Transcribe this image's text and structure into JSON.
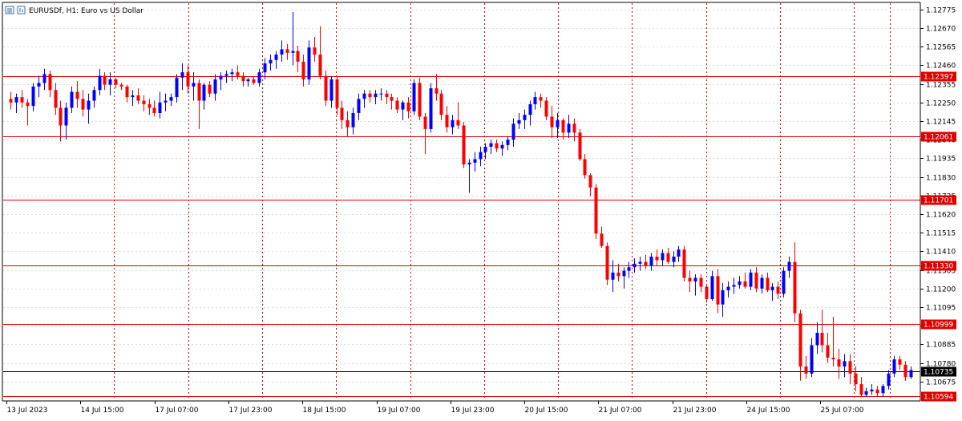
{
  "header": {
    "title": "EURUSDf, H1:  Euro vs US Dollar"
  },
  "colors": {
    "bull": "#0000ff",
    "bear": "#ff0000",
    "level": "#e00000",
    "current": "#000000",
    "grid": "#dddddd",
    "vgrid": "#e00000"
  },
  "chart_data": {
    "type": "candlestick",
    "symbol": "EURUSDf",
    "timeframe": "H1",
    "description": "Euro vs US Dollar",
    "ylim": [
      1.1057,
      1.1281
    ],
    "y_ticks": [
      "1.12775",
      "1.12670",
      "1.12565",
      "1.12460",
      "1.12355",
      "1.12250",
      "1.12145",
      "1.12040",
      "1.11935",
      "1.11830",
      "1.11725",
      "1.11620",
      "1.11515",
      "1.11410",
      "1.11305",
      "1.11200",
      "1.11095",
      "1.10990",
      "1.10885",
      "1.10780",
      "1.10675"
    ],
    "x_ticks": [
      "13 Jul 2023",
      "14 Jul 15:00",
      "17 Jul 07:00",
      "17 Jul 23:00",
      "18 Jul 15:00",
      "19 Jul 07:00",
      "19 Jul 23:00",
      "20 Jul 15:00",
      "21 Jul 07:00",
      "21 Jul 23:00",
      "24 Jul 15:00",
      "25 Jul 07:00"
    ],
    "levels": [
      {
        "value": 1.12397,
        "label": "1.12397"
      },
      {
        "value": 1.12061,
        "label": "1.12061"
      },
      {
        "value": 1.11701,
        "label": "1.11701"
      },
      {
        "value": 1.1133,
        "label": "1.11330"
      },
      {
        "value": 1.10999,
        "label": "1.10999"
      },
      {
        "value": 1.10594,
        "label": "1.10594"
      }
    ],
    "current_price": {
      "value": 1.10735,
      "label": "1.10735"
    },
    "candles": [
      {
        "o": 1.1227,
        "h": 1.1231,
        "l": 1.1221,
        "c": 1.1225
      },
      {
        "o": 1.1225,
        "h": 1.123,
        "l": 1.1219,
        "c": 1.1228
      },
      {
        "o": 1.1228,
        "h": 1.1232,
        "l": 1.1222,
        "c": 1.1225
      },
      {
        "o": 1.1225,
        "h": 1.1227,
        "l": 1.1212,
        "c": 1.1223
      },
      {
        "o": 1.1223,
        "h": 1.1236,
        "l": 1.122,
        "c": 1.1234
      },
      {
        "o": 1.1234,
        "h": 1.124,
        "l": 1.1228,
        "c": 1.1236
      },
      {
        "o": 1.1236,
        "h": 1.1244,
        "l": 1.1232,
        "c": 1.1241
      },
      {
        "o": 1.1241,
        "h": 1.1243,
        "l": 1.1228,
        "c": 1.1232
      },
      {
        "o": 1.1232,
        "h": 1.1236,
        "l": 1.1218,
        "c": 1.1222
      },
      {
        "o": 1.1222,
        "h": 1.1226,
        "l": 1.1203,
        "c": 1.1212
      },
      {
        "o": 1.1212,
        "h": 1.1225,
        "l": 1.1204,
        "c": 1.1222
      },
      {
        "o": 1.1222,
        "h": 1.1234,
        "l": 1.1219,
        "c": 1.1231
      },
      {
        "o": 1.1231,
        "h": 1.1237,
        "l": 1.1222,
        "c": 1.1227
      },
      {
        "o": 1.1227,
        "h": 1.1232,
        "l": 1.1217,
        "c": 1.1221
      },
      {
        "o": 1.1221,
        "h": 1.123,
        "l": 1.1213,
        "c": 1.1226
      },
      {
        "o": 1.1226,
        "h": 1.1234,
        "l": 1.1222,
        "c": 1.1232
      },
      {
        "o": 1.1232,
        "h": 1.1244,
        "l": 1.1229,
        "c": 1.124
      },
      {
        "o": 1.124,
        "h": 1.1242,
        "l": 1.1232,
        "c": 1.1235
      },
      {
        "o": 1.1235,
        "h": 1.1242,
        "l": 1.1229,
        "c": 1.1238
      },
      {
        "o": 1.1238,
        "h": 1.1239,
        "l": 1.1233,
        "c": 1.1235
      },
      {
        "o": 1.1235,
        "h": 1.1236,
        "l": 1.1232,
        "c": 1.1234
      },
      {
        "o": 1.1234,
        "h": 1.1235,
        "l": 1.1225,
        "c": 1.1228
      },
      {
        "o": 1.1228,
        "h": 1.1232,
        "l": 1.1223,
        "c": 1.1229
      },
      {
        "o": 1.1229,
        "h": 1.1233,
        "l": 1.1224,
        "c": 1.1226
      },
      {
        "o": 1.1226,
        "h": 1.1229,
        "l": 1.122,
        "c": 1.1224
      },
      {
        "o": 1.1224,
        "h": 1.1227,
        "l": 1.1218,
        "c": 1.1222
      },
      {
        "o": 1.1222,
        "h": 1.1226,
        "l": 1.1217,
        "c": 1.1219
      },
      {
        "o": 1.1219,
        "h": 1.1231,
        "l": 1.1216,
        "c": 1.1225
      },
      {
        "o": 1.1225,
        "h": 1.123,
        "l": 1.122,
        "c": 1.1226
      },
      {
        "o": 1.1226,
        "h": 1.123,
        "l": 1.1223,
        "c": 1.1228
      },
      {
        "o": 1.1228,
        "h": 1.1241,
        "l": 1.1225,
        "c": 1.1239
      },
      {
        "o": 1.1239,
        "h": 1.1247,
        "l": 1.1232,
        "c": 1.1242
      },
      {
        "o": 1.1242,
        "h": 1.1246,
        "l": 1.123,
        "c": 1.1234
      },
      {
        "o": 1.1234,
        "h": 1.1242,
        "l": 1.1226,
        "c": 1.1236
      },
      {
        "o": 1.1236,
        "h": 1.1238,
        "l": 1.121,
        "c": 1.1226
      },
      {
        "o": 1.1226,
        "h": 1.1236,
        "l": 1.1221,
        "c": 1.1235
      },
      {
        "o": 1.1235,
        "h": 1.1237,
        "l": 1.1228,
        "c": 1.123
      },
      {
        "o": 1.123,
        "h": 1.1241,
        "l": 1.1226,
        "c": 1.1238
      },
      {
        "o": 1.1238,
        "h": 1.1242,
        "l": 1.1232,
        "c": 1.124
      },
      {
        "o": 1.124,
        "h": 1.1243,
        "l": 1.1236,
        "c": 1.1241
      },
      {
        "o": 1.1241,
        "h": 1.1244,
        "l": 1.1237,
        "c": 1.1242
      },
      {
        "o": 1.1242,
        "h": 1.1246,
        "l": 1.1238,
        "c": 1.124
      },
      {
        "o": 1.124,
        "h": 1.1242,
        "l": 1.1234,
        "c": 1.1237
      },
      {
        "o": 1.1237,
        "h": 1.1239,
        "l": 1.1234,
        "c": 1.1238
      },
      {
        "o": 1.1238,
        "h": 1.124,
        "l": 1.1235,
        "c": 1.1236
      },
      {
        "o": 1.1236,
        "h": 1.1244,
        "l": 1.1234,
        "c": 1.1242
      },
      {
        "o": 1.1242,
        "h": 1.125,
        "l": 1.1238,
        "c": 1.1247
      },
      {
        "o": 1.1247,
        "h": 1.1252,
        "l": 1.1243,
        "c": 1.1249
      },
      {
        "o": 1.1249,
        "h": 1.1254,
        "l": 1.1244,
        "c": 1.1252
      },
      {
        "o": 1.1252,
        "h": 1.126,
        "l": 1.1248,
        "c": 1.1255
      },
      {
        "o": 1.1255,
        "h": 1.1258,
        "l": 1.1249,
        "c": 1.1253
      },
      {
        "o": 1.1253,
        "h": 1.1276,
        "l": 1.1246,
        "c": 1.1254
      },
      {
        "o": 1.1254,
        "h": 1.1257,
        "l": 1.1242,
        "c": 1.1248
      },
      {
        "o": 1.1248,
        "h": 1.1252,
        "l": 1.1234,
        "c": 1.1238
      },
      {
        "o": 1.1238,
        "h": 1.126,
        "l": 1.1235,
        "c": 1.1256
      },
      {
        "o": 1.1256,
        "h": 1.1262,
        "l": 1.1248,
        "c": 1.1252
      },
      {
        "o": 1.1252,
        "h": 1.1268,
        "l": 1.1238,
        "c": 1.124
      },
      {
        "o": 1.124,
        "h": 1.1243,
        "l": 1.1223,
        "c": 1.1226
      },
      {
        "o": 1.1226,
        "h": 1.124,
        "l": 1.1222,
        "c": 1.1238
      },
      {
        "o": 1.1238,
        "h": 1.124,
        "l": 1.1218,
        "c": 1.1222
      },
      {
        "o": 1.1222,
        "h": 1.1226,
        "l": 1.121,
        "c": 1.1215
      },
      {
        "o": 1.1215,
        "h": 1.122,
        "l": 1.1206,
        "c": 1.1211
      },
      {
        "o": 1.1211,
        "h": 1.1222,
        "l": 1.1207,
        "c": 1.1219
      },
      {
        "o": 1.1219,
        "h": 1.123,
        "l": 1.1215,
        "c": 1.1227
      },
      {
        "o": 1.1227,
        "h": 1.1232,
        "l": 1.1222,
        "c": 1.123
      },
      {
        "o": 1.123,
        "h": 1.1232,
        "l": 1.1225,
        "c": 1.1228
      },
      {
        "o": 1.1228,
        "h": 1.1232,
        "l": 1.1224,
        "c": 1.123
      },
      {
        "o": 1.123,
        "h": 1.1233,
        "l": 1.1226,
        "c": 1.123
      },
      {
        "o": 1.123,
        "h": 1.1232,
        "l": 1.1224,
        "c": 1.1228
      },
      {
        "o": 1.1228,
        "h": 1.123,
        "l": 1.1221,
        "c": 1.1226
      },
      {
        "o": 1.1226,
        "h": 1.1228,
        "l": 1.1219,
        "c": 1.1221
      },
      {
        "o": 1.1221,
        "h": 1.1226,
        "l": 1.1215,
        "c": 1.1225
      },
      {
        "o": 1.1225,
        "h": 1.1228,
        "l": 1.1216,
        "c": 1.122
      },
      {
        "o": 1.122,
        "h": 1.1238,
        "l": 1.1218,
        "c": 1.1236
      },
      {
        "o": 1.1236,
        "h": 1.1239,
        "l": 1.1215,
        "c": 1.1217
      },
      {
        "o": 1.1217,
        "h": 1.1219,
        "l": 1.1196,
        "c": 1.121
      },
      {
        "o": 1.121,
        "h": 1.1236,
        "l": 1.1208,
        "c": 1.1233
      },
      {
        "o": 1.1233,
        "h": 1.1241,
        "l": 1.1226,
        "c": 1.123
      },
      {
        "o": 1.123,
        "h": 1.1232,
        "l": 1.1215,
        "c": 1.1218
      },
      {
        "o": 1.1218,
        "h": 1.1223,
        "l": 1.1208,
        "c": 1.1211
      },
      {
        "o": 1.1211,
        "h": 1.1218,
        "l": 1.1207,
        "c": 1.1215
      },
      {
        "o": 1.1215,
        "h": 1.1225,
        "l": 1.121,
        "c": 1.1212
      },
      {
        "o": 1.1212,
        "h": 1.1214,
        "l": 1.1188,
        "c": 1.119
      },
      {
        "o": 1.119,
        "h": 1.1193,
        "l": 1.1174,
        "c": 1.1191
      },
      {
        "o": 1.1191,
        "h": 1.1197,
        "l": 1.1186,
        "c": 1.1193
      },
      {
        "o": 1.1193,
        "h": 1.12,
        "l": 1.1189,
        "c": 1.1197
      },
      {
        "o": 1.1197,
        "h": 1.1202,
        "l": 1.1193,
        "c": 1.12
      },
      {
        "o": 1.12,
        "h": 1.1204,
        "l": 1.1196,
        "c": 1.1202
      },
      {
        "o": 1.1202,
        "h": 1.1204,
        "l": 1.1197,
        "c": 1.1199
      },
      {
        "o": 1.1199,
        "h": 1.1203,
        "l": 1.1195,
        "c": 1.1201
      },
      {
        "o": 1.1201,
        "h": 1.1206,
        "l": 1.1198,
        "c": 1.1204
      },
      {
        "o": 1.1204,
        "h": 1.1216,
        "l": 1.12,
        "c": 1.1213
      },
      {
        "o": 1.1213,
        "h": 1.1219,
        "l": 1.121,
        "c": 1.1215
      },
      {
        "o": 1.1215,
        "h": 1.1221,
        "l": 1.121,
        "c": 1.1218
      },
      {
        "o": 1.1218,
        "h": 1.1226,
        "l": 1.1212,
        "c": 1.1224
      },
      {
        "o": 1.1224,
        "h": 1.1231,
        "l": 1.1221,
        "c": 1.1228
      },
      {
        "o": 1.1228,
        "h": 1.123,
        "l": 1.1222,
        "c": 1.1226
      },
      {
        "o": 1.1226,
        "h": 1.1228,
        "l": 1.1215,
        "c": 1.1217
      },
      {
        "o": 1.1217,
        "h": 1.1223,
        "l": 1.1205,
        "c": 1.1211
      },
      {
        "o": 1.1211,
        "h": 1.1219,
        "l": 1.1205,
        "c": 1.1215
      },
      {
        "o": 1.1215,
        "h": 1.1216,
        "l": 1.1204,
        "c": 1.1208
      },
      {
        "o": 1.1208,
        "h": 1.1218,
        "l": 1.1205,
        "c": 1.1213
      },
      {
        "o": 1.1213,
        "h": 1.1216,
        "l": 1.1203,
        "c": 1.1208
      },
      {
        "o": 1.1208,
        "h": 1.121,
        "l": 1.1192,
        "c": 1.1193
      },
      {
        "o": 1.1193,
        "h": 1.1196,
        "l": 1.1182,
        "c": 1.1184
      },
      {
        "o": 1.1184,
        "h": 1.1185,
        "l": 1.1172,
        "c": 1.1177
      },
      {
        "o": 1.1177,
        "h": 1.1179,
        "l": 1.1148,
        "c": 1.1151
      },
      {
        "o": 1.1151,
        "h": 1.1155,
        "l": 1.1143,
        "c": 1.1144
      },
      {
        "o": 1.1144,
        "h": 1.1146,
        "l": 1.1122,
        "c": 1.1125
      },
      {
        "o": 1.1125,
        "h": 1.1136,
        "l": 1.1118,
        "c": 1.1129
      },
      {
        "o": 1.1129,
        "h": 1.1134,
        "l": 1.1124,
        "c": 1.1127
      },
      {
        "o": 1.1127,
        "h": 1.1132,
        "l": 1.112,
        "c": 1.113
      },
      {
        "o": 1.113,
        "h": 1.1135,
        "l": 1.1126,
        "c": 1.1132
      },
      {
        "o": 1.1132,
        "h": 1.1137,
        "l": 1.1129,
        "c": 1.1134
      },
      {
        "o": 1.1134,
        "h": 1.1138,
        "l": 1.113,
        "c": 1.1135
      },
      {
        "o": 1.1135,
        "h": 1.1139,
        "l": 1.1131,
        "c": 1.1133
      },
      {
        "o": 1.1133,
        "h": 1.114,
        "l": 1.113,
        "c": 1.1138
      },
      {
        "o": 1.1138,
        "h": 1.1142,
        "l": 1.1133,
        "c": 1.1136
      },
      {
        "o": 1.1136,
        "h": 1.1142,
        "l": 1.1133,
        "c": 1.114
      },
      {
        "o": 1.114,
        "h": 1.1143,
        "l": 1.1134,
        "c": 1.1135
      },
      {
        "o": 1.1135,
        "h": 1.1141,
        "l": 1.1132,
        "c": 1.1138
      },
      {
        "o": 1.1138,
        "h": 1.1144,
        "l": 1.1135,
        "c": 1.1142
      },
      {
        "o": 1.1142,
        "h": 1.1144,
        "l": 1.1124,
        "c": 1.1126
      },
      {
        "o": 1.1126,
        "h": 1.113,
        "l": 1.1118,
        "c": 1.1124
      },
      {
        "o": 1.1124,
        "h": 1.1128,
        "l": 1.1116,
        "c": 1.1126
      },
      {
        "o": 1.1126,
        "h": 1.1128,
        "l": 1.1118,
        "c": 1.1121
      },
      {
        "o": 1.1121,
        "h": 1.1122,
        "l": 1.1112,
        "c": 1.1114
      },
      {
        "o": 1.1114,
        "h": 1.113,
        "l": 1.1113,
        "c": 1.1127
      },
      {
        "o": 1.1127,
        "h": 1.1131,
        "l": 1.1106,
        "c": 1.1111
      },
      {
        "o": 1.1111,
        "h": 1.1123,
        "l": 1.1104,
        "c": 1.1119
      },
      {
        "o": 1.1119,
        "h": 1.1124,
        "l": 1.1115,
        "c": 1.1121
      },
      {
        "o": 1.1121,
        "h": 1.1126,
        "l": 1.1117,
        "c": 1.1122
      },
      {
        "o": 1.1122,
        "h": 1.1127,
        "l": 1.112,
        "c": 1.1124
      },
      {
        "o": 1.1124,
        "h": 1.1129,
        "l": 1.112,
        "c": 1.1121
      },
      {
        "o": 1.1121,
        "h": 1.1131,
        "l": 1.1119,
        "c": 1.1129
      },
      {
        "o": 1.1129,
        "h": 1.1132,
        "l": 1.1118,
        "c": 1.112
      },
      {
        "o": 1.112,
        "h": 1.1128,
        "l": 1.1117,
        "c": 1.1126
      },
      {
        "o": 1.1126,
        "h": 1.1129,
        "l": 1.1118,
        "c": 1.1119
      },
      {
        "o": 1.1119,
        "h": 1.1123,
        "l": 1.1113,
        "c": 1.1121
      },
      {
        "o": 1.1121,
        "h": 1.1124,
        "l": 1.1114,
        "c": 1.1117
      },
      {
        "o": 1.1117,
        "h": 1.1132,
        "l": 1.1115,
        "c": 1.113
      },
      {
        "o": 1.113,
        "h": 1.1138,
        "l": 1.1126,
        "c": 1.1135
      },
      {
        "o": 1.1135,
        "h": 1.1146,
        "l": 1.1101,
        "c": 1.1106
      },
      {
        "o": 1.1106,
        "h": 1.1108,
        "l": 1.1068,
        "c": 1.1076
      },
      {
        "o": 1.1076,
        "h": 1.1082,
        "l": 1.1069,
        "c": 1.1072
      },
      {
        "o": 1.1072,
        "h": 1.1092,
        "l": 1.107,
        "c": 1.1088
      },
      {
        "o": 1.1088,
        "h": 1.1101,
        "l": 1.1083,
        "c": 1.1095
      },
      {
        "o": 1.1095,
        "h": 1.1108,
        "l": 1.1084,
        "c": 1.1088
      },
      {
        "o": 1.1088,
        "h": 1.1095,
        "l": 1.1078,
        "c": 1.1081
      },
      {
        "o": 1.1081,
        "h": 1.1104,
        "l": 1.1076,
        "c": 1.108
      },
      {
        "o": 1.108,
        "h": 1.1086,
        "l": 1.1069,
        "c": 1.1076
      },
      {
        "o": 1.1076,
        "h": 1.1083,
        "l": 1.107,
        "c": 1.1079
      },
      {
        "o": 1.1079,
        "h": 1.1083,
        "l": 1.1066,
        "c": 1.1072
      },
      {
        "o": 1.1072,
        "h": 1.1076,
        "l": 1.1062,
        "c": 1.1066
      },
      {
        "o": 1.1066,
        "h": 1.107,
        "l": 1.1059,
        "c": 1.106
      },
      {
        "o": 1.106,
        "h": 1.1064,
        "l": 1.1059,
        "c": 1.1062
      },
      {
        "o": 1.1062,
        "h": 1.1066,
        "l": 1.106,
        "c": 1.1063
      },
      {
        "o": 1.1063,
        "h": 1.1065,
        "l": 1.1059,
        "c": 1.1061
      },
      {
        "o": 1.1061,
        "h": 1.1066,
        "l": 1.1059,
        "c": 1.1065
      },
      {
        "o": 1.1065,
        "h": 1.1074,
        "l": 1.1063,
        "c": 1.1072
      },
      {
        "o": 1.1072,
        "h": 1.1082,
        "l": 1.107,
        "c": 1.108
      },
      {
        "o": 1.108,
        "h": 1.1082,
        "l": 1.1074,
        "c": 1.1077
      },
      {
        "o": 1.1077,
        "h": 1.1079,
        "l": 1.1068,
        "c": 1.107
      },
      {
        "o": 1.107,
        "h": 1.1076,
        "l": 1.1069,
        "c": 1.1074
      }
    ]
  }
}
